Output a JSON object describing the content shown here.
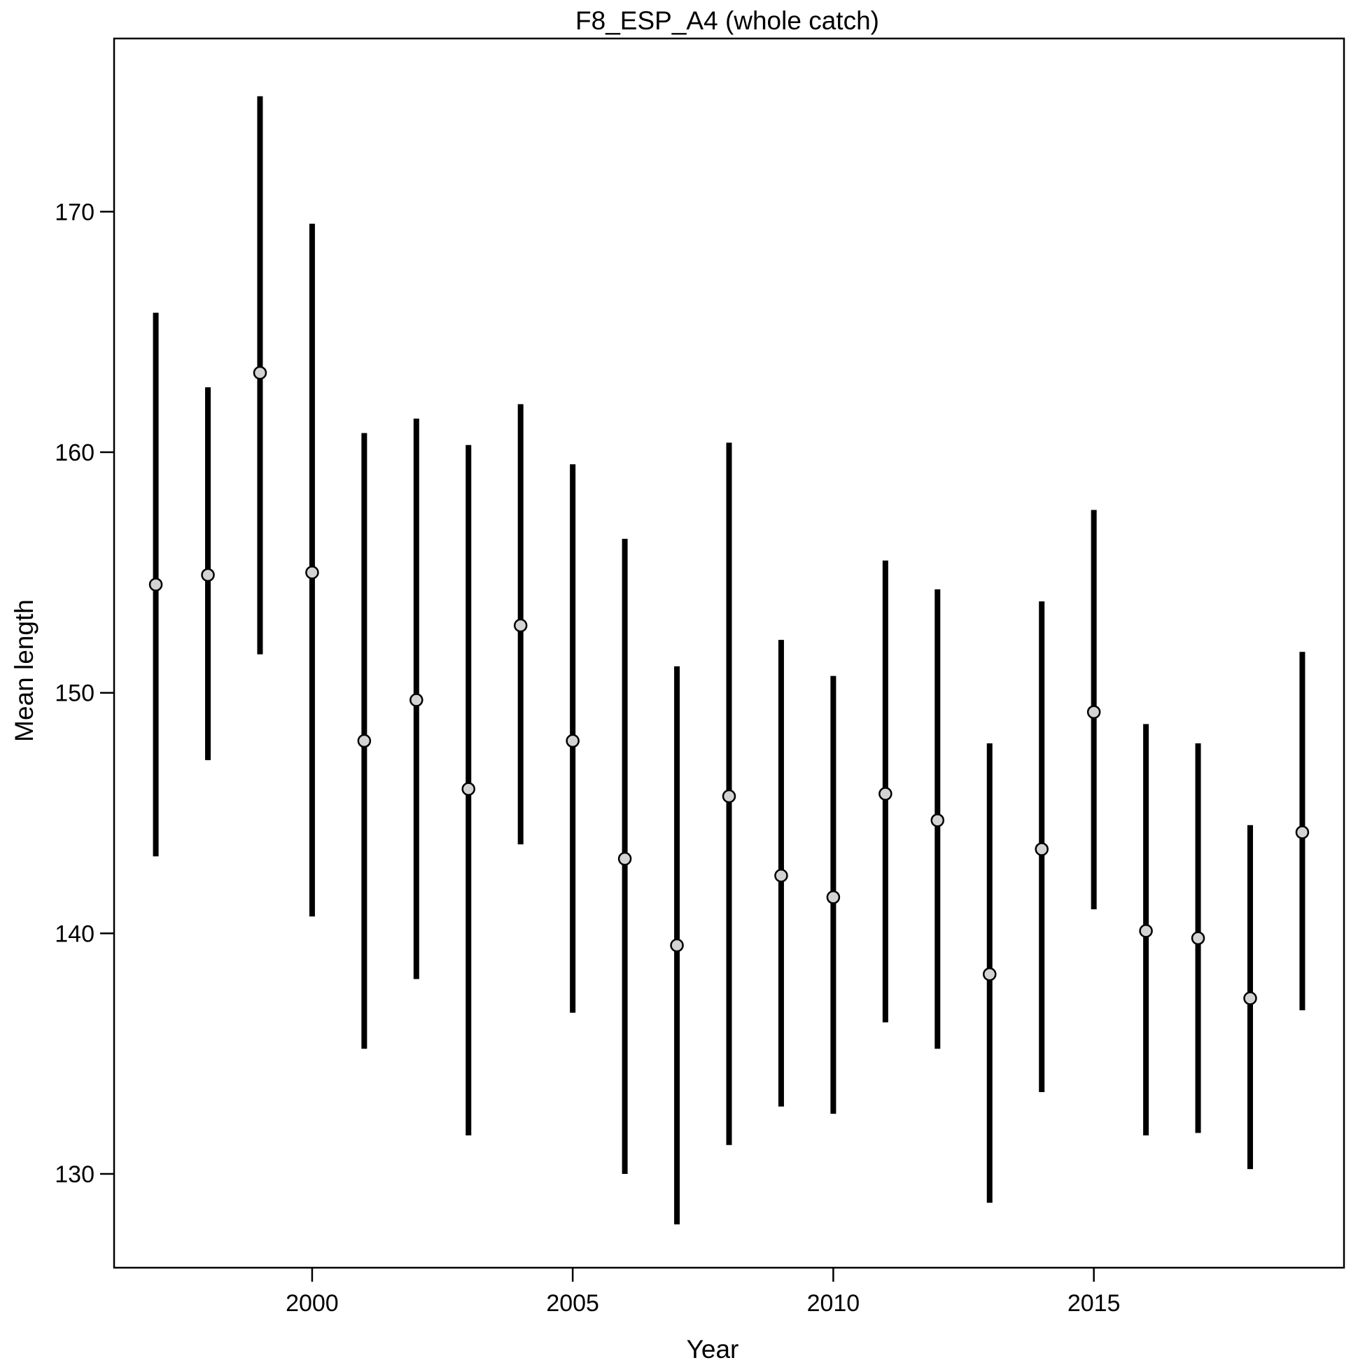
{
  "chart_data": {
    "type": "scatter",
    "title": "F8_ESP_A4 (whole catch)",
    "xlabel": "Year",
    "ylabel": "Mean length",
    "xlim": [
      1996.2,
      2019.8
    ],
    "ylim": [
      126.1,
      177.2
    ],
    "x_ticks": [
      2000,
      2005,
      2010,
      2015
    ],
    "y_ticks": [
      130,
      140,
      150,
      160,
      170
    ],
    "grid": false,
    "legend": "none",
    "colors": {
      "interval": "#000000",
      "point_fill": "#d3d3d3",
      "point_stroke": "#000000",
      "frame": "#000000"
    },
    "series": [
      {
        "x": [
          1997,
          1998,
          1999,
          2000,
          2001,
          2002,
          2003,
          2004,
          2005,
          2006,
          2007,
          2008,
          2009,
          2010,
          2011,
          2012,
          2013,
          2014,
          2015,
          2016,
          2017,
          2018,
          2019
        ],
        "y": [
          154.5,
          154.9,
          163.3,
          155.0,
          148.0,
          149.7,
          146.0,
          152.8,
          148.0,
          143.1,
          139.5,
          145.7,
          142.4,
          141.5,
          145.8,
          144.7,
          138.3,
          143.5,
          149.2,
          140.1,
          139.8,
          137.3,
          144.2
        ],
        "lower": [
          143.2,
          147.2,
          151.6,
          140.7,
          135.2,
          138.1,
          131.6,
          143.7,
          136.7,
          130.0,
          127.9,
          131.2,
          132.8,
          132.5,
          136.3,
          135.2,
          128.8,
          133.4,
          141.0,
          131.6,
          131.7,
          130.2,
          136.8
        ],
        "upper": [
          165.8,
          162.7,
          174.8,
          169.5,
          160.8,
          161.4,
          160.3,
          162.0,
          159.5,
          156.4,
          151.1,
          160.4,
          152.2,
          150.7,
          155.5,
          154.3,
          147.9,
          153.8,
          157.6,
          148.7,
          147.9,
          144.5,
          151.7
        ]
      }
    ]
  }
}
